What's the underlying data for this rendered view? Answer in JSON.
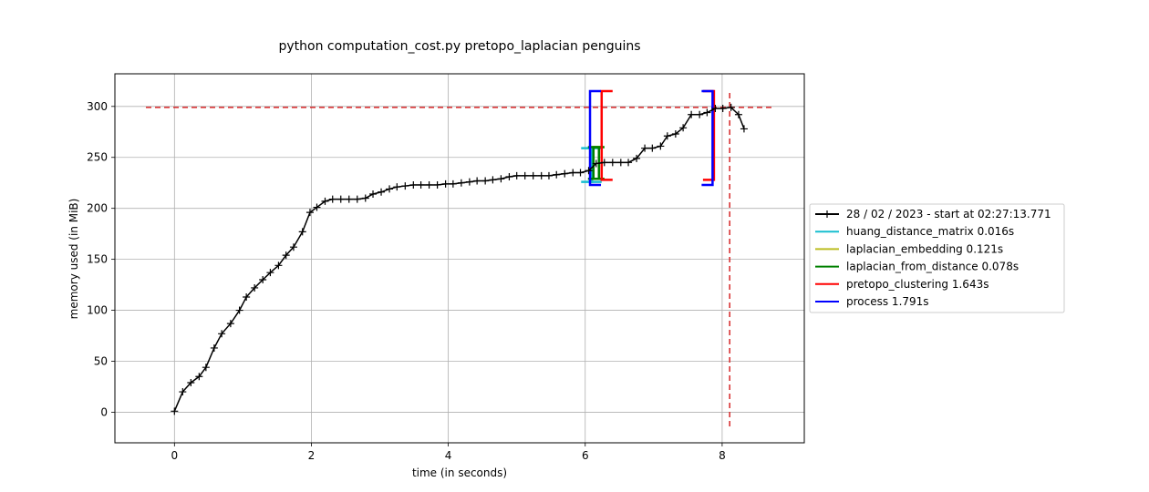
{
  "chart_data": {
    "type": "line",
    "title": "python computation_cost.py pretopo_laplacian penguins",
    "xlabel": "time (in seconds)",
    "ylabel": "memory used (in MiB)",
    "xlim": [
      -0.87,
      9.2
    ],
    "ylim": [
      -30,
      332
    ],
    "xticks": [
      0,
      2,
      4,
      6,
      8
    ],
    "yticks": [
      0,
      50,
      100,
      150,
      200,
      250,
      300
    ],
    "grid": true,
    "legend_position": "right",
    "series": [
      {
        "name": "28 / 02 / 2023 - start at 02:27:13.771",
        "color": "#000000",
        "marker": "+",
        "x": [
          0.0,
          0.12,
          0.24,
          0.36,
          0.46,
          0.58,
          0.69,
          0.82,
          0.95,
          1.05,
          1.17,
          1.29,
          1.4,
          1.52,
          1.63,
          1.74,
          1.87,
          1.98,
          2.08,
          2.2,
          2.31,
          2.43,
          2.55,
          2.67,
          2.79,
          2.9,
          3.02,
          3.14,
          3.25,
          3.37,
          3.49,
          3.6,
          3.72,
          3.84,
          3.96,
          4.07,
          4.19,
          4.31,
          4.42,
          4.54,
          4.65,
          4.77,
          4.89,
          5.0,
          5.12,
          5.24,
          5.36,
          5.47,
          5.58,
          5.7,
          5.82,
          5.93,
          6.05,
          6.16,
          6.28,
          6.4,
          6.52,
          6.63,
          6.75,
          6.87,
          6.98,
          7.1,
          7.2,
          7.32,
          7.43,
          7.55,
          7.67,
          7.78,
          7.9,
          8.01,
          8.13,
          8.24,
          8.32
        ],
        "y": [
          1,
          20,
          29,
          35,
          44,
          63,
          77,
          87,
          100,
          113,
          122,
          130,
          137,
          144,
          154,
          162,
          177,
          196,
          201,
          207,
          209,
          209,
          209,
          209,
          210,
          214,
          216,
          219,
          221,
          222,
          223,
          223,
          223,
          223,
          224,
          224,
          225,
          226,
          227,
          227,
          228,
          229,
          231,
          232,
          232,
          232,
          232,
          232,
          233,
          234,
          235,
          235,
          237,
          244,
          245,
          245,
          245,
          245,
          249,
          259,
          259,
          261,
          271,
          273,
          279,
          292,
          292,
          294,
          298,
          298,
          299,
          292,
          278
        ]
      }
    ],
    "reference_lines": {
      "max_memory": 299,
      "max_time": 8.11,
      "color": "#d62728"
    },
    "function_brackets": [
      {
        "name": "huang_distance_matrix 0.016s",
        "color": "#17becf",
        "start": 6.08,
        "end": 6.1,
        "ymin": 226,
        "ymax": 259
      },
      {
        "name": "laplacian_embedding 0.121s",
        "color": "#bcbd22",
        "start": 6.12,
        "end": 6.24,
        "ymin": 229,
        "ymax": 260
      },
      {
        "name": "laplacian_from_distance 0.078s",
        "color": "#008000",
        "start": 6.12,
        "end": 6.2,
        "ymin": 229,
        "ymax": 260
      },
      {
        "name": "pretopo_clustering 1.643s",
        "color": "#ff0000",
        "start": 6.24,
        "end": 7.88,
        "ymin": 228,
        "ymax": 315
      },
      {
        "name": "process 1.791s",
        "color": "#0000ff",
        "start": 6.07,
        "end": 7.86,
        "ymin": 223,
        "ymax": 315
      }
    ]
  }
}
